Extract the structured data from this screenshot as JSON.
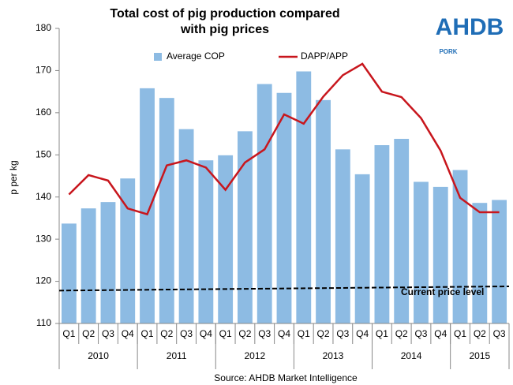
{
  "chart_data": {
    "type": "bar_line",
    "title": "Total cost of pig production compared with pig prices",
    "y_label": "p per kg",
    "source": "Source: AHDB Market Intelligence",
    "logo": {
      "text": "AHDB",
      "subtext": "PORK"
    },
    "category_groups": [
      {
        "label": "2010",
        "categories": [
          "Q1",
          "Q2",
          "Q3",
          "Q4"
        ]
      },
      {
        "label": "2011",
        "categories": [
          "Q1",
          "Q2",
          "Q3",
          "Q4"
        ]
      },
      {
        "label": "2012",
        "categories": [
          "Q1",
          "Q2",
          "Q3",
          "Q4"
        ]
      },
      {
        "label": "2013",
        "categories": [
          "Q1",
          "Q2",
          "Q3",
          "Q4"
        ]
      },
      {
        "label": "2014",
        "categories": [
          "Q1",
          "Q2",
          "Q3",
          "Q4"
        ]
      },
      {
        "label": "2015",
        "categories": [
          "Q1",
          "Q2",
          "Q3"
        ]
      }
    ],
    "series": [
      {
        "name": "Average COP",
        "type": "bar",
        "color": "#8dbbe3",
        "values": [
          133.7,
          137.3,
          138.8,
          144.4,
          165.8,
          163.5,
          156.1,
          148.7,
          149.9,
          155.6,
          166.8,
          164.7,
          169.8,
          163.0,
          151.3,
          145.4,
          152.3,
          153.8,
          143.6,
          142.4,
          146.4,
          138.6,
          139.3
        ]
      },
      {
        "name": "DAPP/APP",
        "type": "line",
        "color": "#c8161d",
        "values": [
          140.6,
          145.2,
          143.9,
          137.3,
          135.9,
          147.5,
          148.7,
          147.0,
          141.7,
          148.2,
          151.3,
          159.6,
          157.4,
          163.8,
          168.9,
          171.6,
          165.0,
          163.7,
          158.7,
          151.0,
          139.8,
          136.4,
          136.4
        ]
      }
    ],
    "reference_line": {
      "label": "Current price level",
      "start": 117.8,
      "end": 118.8,
      "color": "#000000"
    },
    "ylim": [
      110,
      180
    ],
    "yticks": [
      110,
      120,
      130,
      140,
      150,
      160,
      170,
      180
    ],
    "grid": false,
    "legend": "top"
  }
}
